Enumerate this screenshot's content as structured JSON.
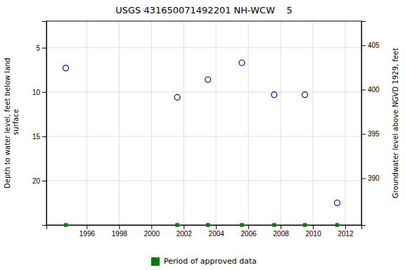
{
  "chart_data": {
    "type": "scatter",
    "title": "USGS 431650071492201 NH-WCW    5",
    "ylabel": "Depth to water level, feet below land\n surface",
    "y2label": "Groundwater level above NGVD 1929, feet",
    "x": [
      1994.7,
      2001.6,
      2003.5,
      2005.6,
      2007.6,
      2009.5,
      2011.5
    ],
    "values": [
      7.3,
      10.6,
      8.6,
      6.7,
      10.3,
      10.3,
      22.5
    ],
    "color": "#0000cc",
    "marker": "circle",
    "xlim": [
      1993.5,
      2013.0
    ],
    "xticks": [
      1996,
      1998,
      2000,
      2002,
      2004,
      2006,
      2008,
      2010,
      2012
    ],
    "ylim": [
      25,
      2
    ],
    "yticks": [
      5,
      10,
      15,
      20
    ],
    "y2lim": [
      384.73,
      407.73
    ],
    "y2ticks": [
      390,
      395,
      400,
      405
    ],
    "grid": true,
    "legend": "bottom",
    "approved_periods": {
      "name": "Period of approved data",
      "x": [
        1994.7,
        2001.6,
        2003.5,
        2005.6,
        2007.6,
        2009.5,
        2011.5
      ],
      "color": "#008000",
      "marker": "square"
    }
  }
}
